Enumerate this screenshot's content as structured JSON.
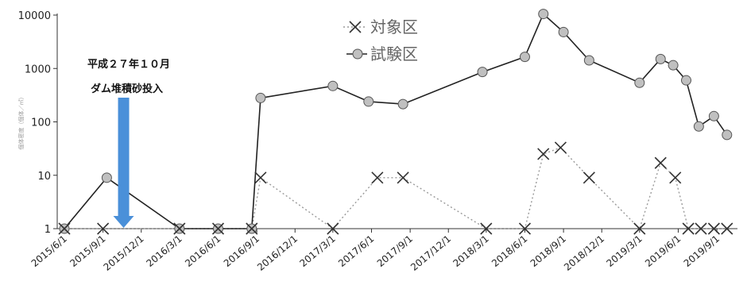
{
  "chart_data": {
    "type": "line",
    "title": "",
    "xlabel": "",
    "ylabel": "個体密度（個体／㎡）",
    "yscale": "log",
    "ylim": [
      1,
      10000
    ],
    "y_ticks": [
      "1",
      "10",
      "100",
      "1000",
      "10000"
    ],
    "x_ticks": [
      "2015/6/1",
      "2015/9/1",
      "2015/12/1",
      "2016/3/1",
      "2016/6/1",
      "2016/9/1",
      "2016/12/1",
      "2017/3/1",
      "2017/6/1",
      "2017/9/1",
      "2017/12/1",
      "2018/3/1",
      "2018/6/1",
      "2018/9/1",
      "2018/12/1",
      "2019/3/1",
      "2019/6/1",
      "2019/9/1"
    ],
    "xlim": [
      "2015/5/15",
      "2019/10/20"
    ],
    "grid": false,
    "legend_position": "top-center",
    "series": [
      {
        "name": "対象区",
        "marker": "x",
        "line_style": "dotted",
        "color": "#888888",
        "points": [
          {
            "x": "2015/6/1",
            "y": 1
          },
          {
            "x": "2015/9/1",
            "y": 1
          },
          {
            "x": "2016/3/1",
            "y": 1
          },
          {
            "x": "2016/6/1",
            "y": 1
          },
          {
            "x": "2016/8/20",
            "y": 1
          },
          {
            "x": "2016/9/10",
            "y": 9
          },
          {
            "x": "2017/3/1",
            "y": 1
          },
          {
            "x": "2017/6/15",
            "y": 9
          },
          {
            "x": "2017/8/15",
            "y": 9
          },
          {
            "x": "2018/3/1",
            "y": 1
          },
          {
            "x": "2018/6/1",
            "y": 1
          },
          {
            "x": "2018/7/15",
            "y": 25
          },
          {
            "x": "2018/8/25",
            "y": 33
          },
          {
            "x": "2018/11/1",
            "y": 9
          },
          {
            "x": "2019/3/1",
            "y": 1
          },
          {
            "x": "2019/4/20",
            "y": 17
          },
          {
            "x": "2019/5/25",
            "y": 9
          },
          {
            "x": "2019/6/25",
            "y": 1
          },
          {
            "x": "2019/7/25",
            "y": 1
          },
          {
            "x": "2019/8/25",
            "y": 1
          },
          {
            "x": "2019/9/25",
            "y": 1
          }
        ]
      },
      {
        "name": "試験区",
        "marker": "circle",
        "line_style": "solid",
        "color": "#222222",
        "marker_fill": "#c0c0c0",
        "points": [
          {
            "x": "2015/6/1",
            "y": 1
          },
          {
            "x": "2015/9/10",
            "y": 9
          },
          {
            "x": "2016/3/1",
            "y": 1
          },
          {
            "x": "2016/6/1",
            "y": 1
          },
          {
            "x": "2016/8/20",
            "y": 1
          },
          {
            "x": "2016/9/10",
            "y": 280
          },
          {
            "x": "2017/3/1",
            "y": 470
          },
          {
            "x": "2017/5/25",
            "y": 240
          },
          {
            "x": "2017/8/15",
            "y": 215
          },
          {
            "x": "2018/2/20",
            "y": 860
          },
          {
            "x": "2018/6/1",
            "y": 1650
          },
          {
            "x": "2018/7/15",
            "y": 10500
          },
          {
            "x": "2018/9/1",
            "y": 4800
          },
          {
            "x": "2018/11/1",
            "y": 1420
          },
          {
            "x": "2019/3/1",
            "y": 540
          },
          {
            "x": "2019/4/20",
            "y": 1500
          },
          {
            "x": "2019/5/20",
            "y": 1150
          },
          {
            "x": "2019/6/20",
            "y": 600
          },
          {
            "x": "2019/7/20",
            "y": 82
          },
          {
            "x": "2019/8/25",
            "y": 128
          },
          {
            "x": "2019/9/25",
            "y": 57
          }
        ]
      }
    ],
    "annotation": {
      "lines": [
        "平成２７年１０月",
        "ダム堆積砂投入"
      ],
      "arrow_date": "2015/10/20",
      "arrow_color": "#4a90d9"
    }
  }
}
